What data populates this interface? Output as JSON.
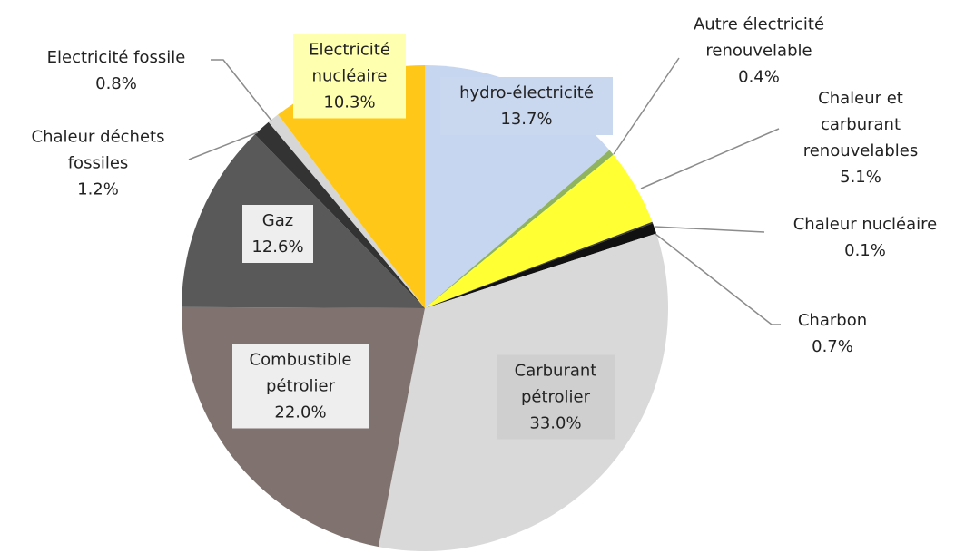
{
  "chart_data": {
    "type": "pie",
    "categories": [
      "hydro-électricité",
      "Autre électricité renouvelable",
      "Chaleur et carburant renouvelables",
      "Chaleur nucléaire",
      "Charbon",
      "Carburant pétrolier",
      "Combustible pétrolier",
      "Gaz",
      "Chaleur déchets fossiles",
      "Electricité fossile",
      "Electricité nucléaire"
    ],
    "values": [
      13.7,
      0.4,
      5.1,
      0.1,
      0.7,
      33.0,
      22.0,
      12.6,
      1.2,
      0.8,
      10.3
    ],
    "value_labels": [
      "13.7%",
      "0.4%",
      "5.1%",
      "0.1%",
      "0.7%",
      "33.0%",
      "22.0%",
      "12.6%",
      "1.2%",
      "0.8%",
      "10.3%"
    ],
    "colors": [
      "#c6d6f1",
      "#8fb35e",
      "#ffff33",
      "#3a3a3a",
      "#111111",
      "#d9d9d9",
      "#80736f",
      "#595959",
      "#333333",
      "#d6d6d6",
      "#ffc819"
    ]
  }
}
